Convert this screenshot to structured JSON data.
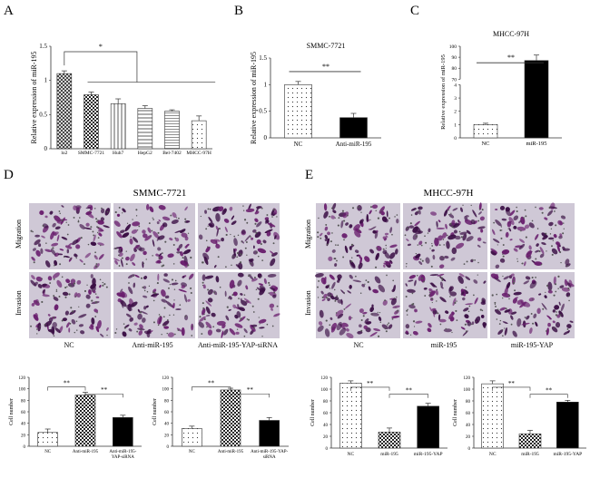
{
  "panels": {
    "A": "A",
    "B": "B",
    "C": "C",
    "D": "D",
    "E": "E"
  },
  "colors": {
    "axis": "#333333",
    "black": "#000000",
    "stain_bg": "#cfc8d6",
    "stain_cell": "#6a1f6e",
    "stain_dark": "#3b0f45"
  },
  "panel_D": {
    "title": "SMMC-7721",
    "row_labels": [
      "Migration",
      "Invasion"
    ],
    "col_labels": [
      "NC",
      "Anti-miR-195",
      "Anti-miR-195-YAP-siRNA"
    ]
  },
  "panel_E": {
    "title": "MHCC-97H",
    "row_labels": [
      "Migration",
      "Invasion"
    ],
    "col_labels": [
      "NC",
      "miR-195",
      "miR-195-YAP"
    ]
  },
  "chart_data": [
    {
      "id": "A",
      "type": "bar",
      "title": "",
      "ylabel": "Relative expression of miR-195",
      "categories": [
        "lo2",
        "SMMC-7721",
        "Huh7",
        "HepG2",
        "Bel-7402",
        "MHCC-97H"
      ],
      "values": [
        1.1,
        0.79,
        0.66,
        0.59,
        0.55,
        0.41
      ],
      "errors": [
        0.04,
        0.04,
        0.07,
        0.04,
        0.02,
        0.07
      ],
      "patterns": [
        "crosshatch",
        "checker",
        "vlines",
        "hlines",
        "hlines2",
        "dots"
      ],
      "ylim": [
        0,
        1.5
      ],
      "yticks": [
        "0",
        "0.5",
        "1",
        "1.5"
      ],
      "annotations": [
        "*"
      ]
    },
    {
      "id": "B",
      "type": "bar",
      "title": "SMMC-7721",
      "ylabel": "Relative expression of miR-195",
      "categories": [
        "NC",
        "Anti-miR-195"
      ],
      "values": [
        1.0,
        0.38
      ],
      "errors": [
        0.06,
        0.08
      ],
      "patterns": [
        "dots",
        "black"
      ],
      "ylim": [
        0,
        1.5
      ],
      "yticks": [
        "0",
        "0.5",
        "1",
        "1.5"
      ],
      "annotations": [
        "**"
      ]
    },
    {
      "id": "C",
      "type": "bar",
      "title": "MHCC-97H",
      "ylabel": "Relative expression of miR-195",
      "categories": [
        "NC",
        "miR-195"
      ],
      "values": [
        1,
        87
      ],
      "errors": [
        0.1,
        5
      ],
      "patterns": [
        "dots",
        "black"
      ],
      "yticks": [
        "0",
        "1",
        "2",
        "3",
        "4",
        "70",
        "80",
        "90",
        "100"
      ],
      "axis_break": true,
      "annotations": [
        "**"
      ]
    },
    {
      "id": "D-migration",
      "type": "bar",
      "title": "",
      "ylabel": "Cell number",
      "categories": [
        "NC",
        "Anti-miR-195",
        "Anti-miR-195-\nYAP-siRNA"
      ],
      "values": [
        24,
        89,
        50
      ],
      "errors": [
        6,
        5,
        4
      ],
      "patterns": [
        "dots",
        "checker",
        "black"
      ],
      "ylim": [
        0,
        120
      ],
      "yticks": [
        "0",
        "20",
        "40",
        "60",
        "80",
        "100",
        "120"
      ],
      "annotations": [
        "**",
        "**"
      ]
    },
    {
      "id": "D-invasion",
      "type": "bar",
      "title": "",
      "ylabel": "Cell number",
      "categories": [
        "NC",
        "Anti-miR-195",
        "Anti-miR-195-YAP-\nsiRNA"
      ],
      "values": [
        31,
        98,
        45
      ],
      "errors": [
        4,
        3,
        5
      ],
      "patterns": [
        "dots",
        "checker",
        "black"
      ],
      "ylim": [
        0,
        120
      ],
      "yticks": [
        "0",
        "20",
        "40",
        "60",
        "80",
        "100",
        "120"
      ],
      "annotations": [
        "**",
        "**"
      ]
    },
    {
      "id": "E-migration",
      "type": "bar",
      "title": "",
      "ylabel": "Cell number",
      "categories": [
        "NC",
        "miR-195",
        "miR-195-YAP"
      ],
      "values": [
        110,
        27,
        71
      ],
      "errors": [
        4,
        7,
        5
      ],
      "patterns": [
        "dots",
        "checker",
        "black"
      ],
      "ylim": [
        0,
        120
      ],
      "yticks": [
        "0",
        "20",
        "40",
        "60",
        "80",
        "100",
        "120"
      ],
      "annotations": [
        "**",
        "**"
      ]
    },
    {
      "id": "E-invasion",
      "type": "bar",
      "title": "",
      "ylabel": "Cell number",
      "categories": [
        "NC",
        "miR-195",
        "miR-195-YAP"
      ],
      "values": [
        109,
        24,
        78
      ],
      "errors": [
        5,
        6,
        3
      ],
      "patterns": [
        "dots",
        "checker",
        "black"
      ],
      "ylim": [
        0,
        120
      ],
      "yticks": [
        "0",
        "20",
        "40",
        "60",
        "80",
        "100",
        "120"
      ],
      "annotations": [
        "**",
        "**"
      ]
    }
  ]
}
